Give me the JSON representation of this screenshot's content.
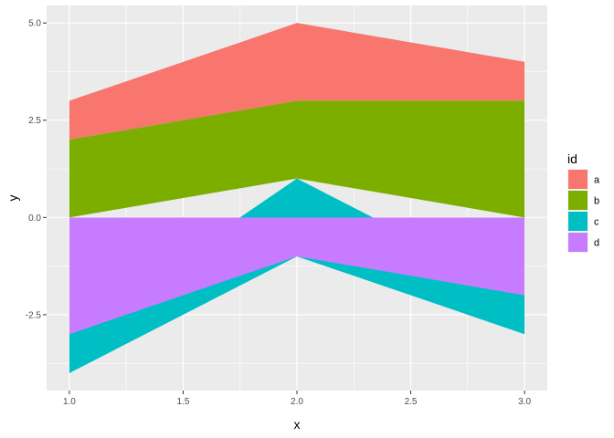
{
  "chart_data": {
    "type": "area",
    "xlabel": "x",
    "ylabel": "y",
    "xlim": [
      0.9,
      3.1
    ],
    "ylim": [
      -4.45,
      5.45
    ],
    "x_ticks": [
      1.0,
      1.5,
      2.0,
      2.5,
      3.0
    ],
    "x_tick_labels": [
      "1.0",
      "1.5",
      "2.0",
      "2.5",
      "3.0"
    ],
    "y_ticks": [
      -2.5,
      0.0,
      2.5,
      5.0
    ],
    "y_tick_labels": [
      "-2.5",
      "0.0",
      "2.5",
      "5.0"
    ],
    "grid": true,
    "panel_background": "#ebebeb",
    "legend": {
      "title": "id",
      "position": "right"
    },
    "series": [
      {
        "name": "a",
        "color": "#F8766D",
        "x": [
          1,
          2,
          3
        ],
        "ymin": [
          2,
          3,
          3
        ],
        "ymax": [
          3,
          5,
          4
        ]
      },
      {
        "name": "b",
        "color": "#7CAE00",
        "x": [
          1,
          2,
          3
        ],
        "ymin": [
          0,
          1,
          0
        ],
        "ymax": [
          2,
          3,
          3
        ]
      },
      {
        "name": "c",
        "color": "#00BFC4",
        "x": [
          1,
          2,
          3
        ],
        "ymin": [
          -4,
          -1,
          -3
        ],
        "ymax": [
          -3,
          1,
          -2
        ]
      },
      {
        "name": "d",
        "color": "#C77CFF",
        "x": [
          1,
          2,
          3
        ],
        "ymin": [
          -3,
          -1,
          -2
        ],
        "ymax": [
          0,
          0,
          0
        ]
      }
    ]
  }
}
